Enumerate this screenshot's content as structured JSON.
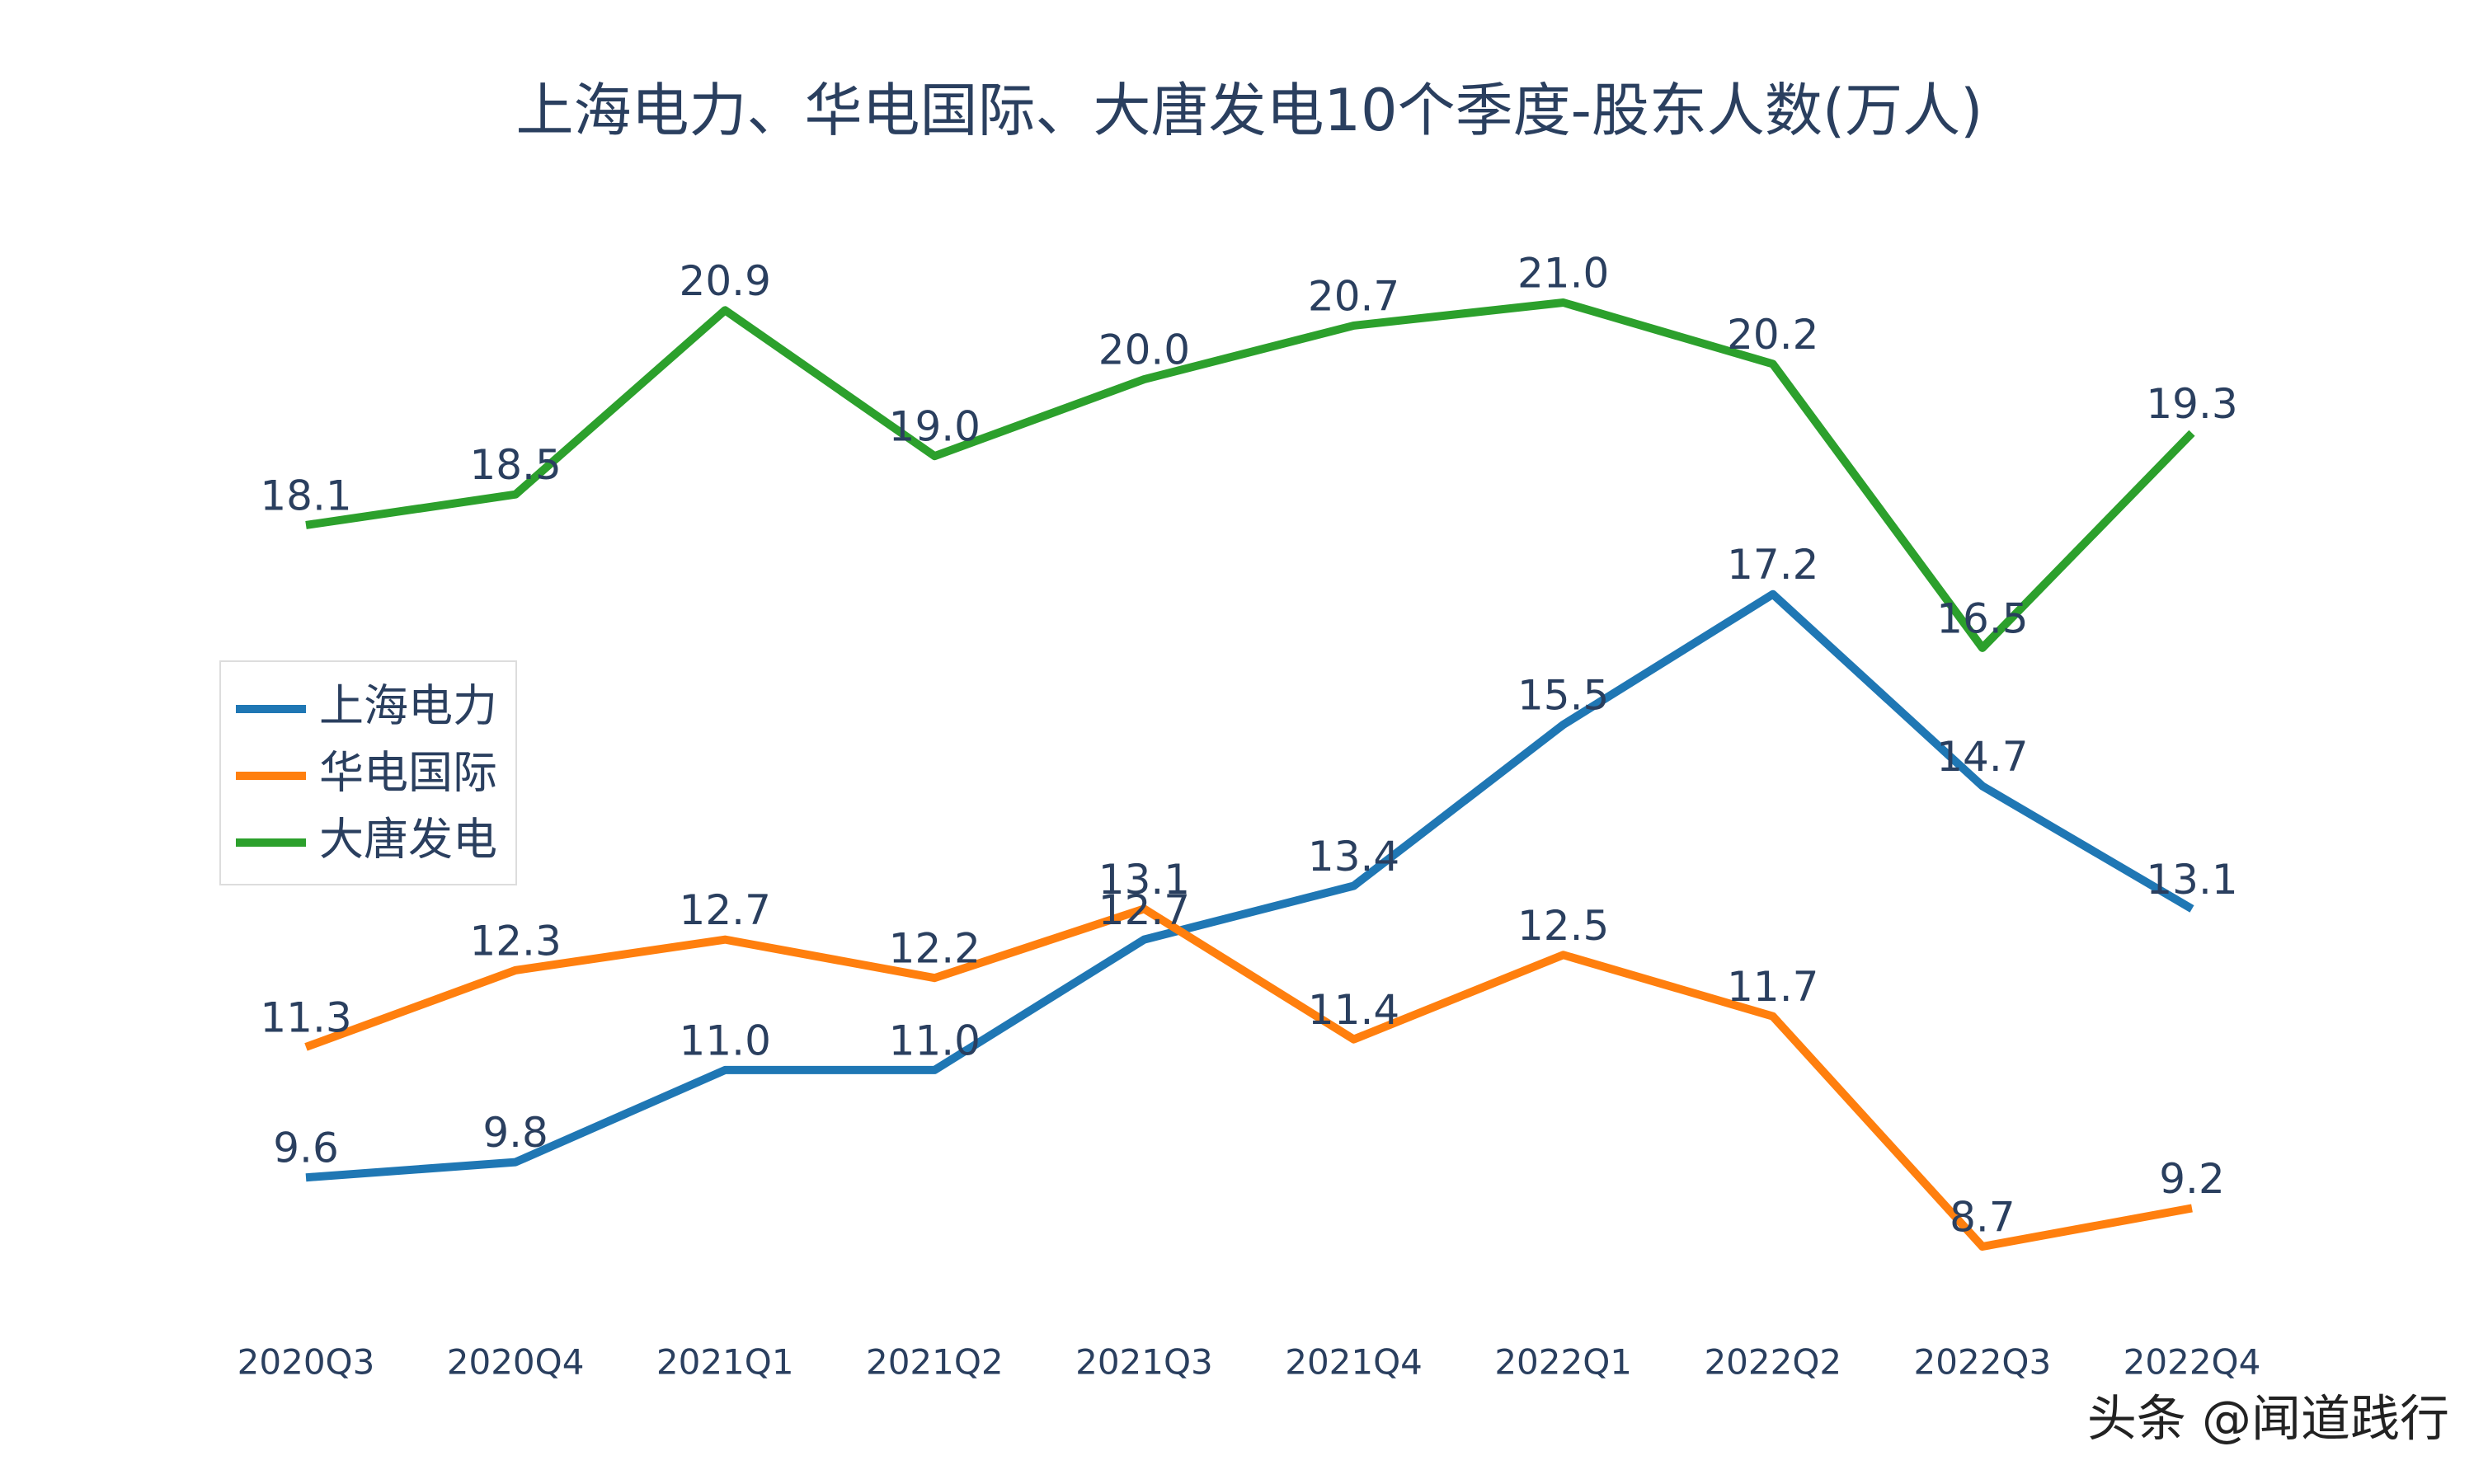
{
  "chart_data": {
    "type": "line",
    "title": "上海电力、华电国际、大唐发电10个季度-股东人数(万人)",
    "categories": [
      "2020Q3",
      "2020Q4",
      "2021Q1",
      "2021Q2",
      "2021Q3",
      "2021Q4",
      "2022Q1",
      "2022Q2",
      "2022Q3",
      "2022Q4"
    ],
    "series": [
      {
        "name": "上海电力",
        "color": "#1f77b4",
        "values": [
          9.6,
          9.8,
          11,
          11,
          12.7,
          13.4,
          15.5,
          17.2,
          14.7,
          13.1
        ],
        "value_labels": [
          "9.6",
          "9.8",
          "11.0",
          "11.0",
          "12.7",
          "13.4",
          "15.5",
          "17.2",
          "14.7",
          "13.1"
        ]
      },
      {
        "name": "华电国际",
        "color": "#ff7f0e",
        "values": [
          11.3,
          12.3,
          12.7,
          12.2,
          13.1,
          11.4,
          12.5,
          11.7,
          8.7,
          9.2
        ],
        "value_labels": [
          "11.3",
          "12.3",
          "12.7",
          "12.2",
          "13.1",
          "11.4",
          "12.5",
          "11.7",
          "8.7",
          "9.2"
        ]
      },
      {
        "name": "大唐发电",
        "color": "#2ca02c",
        "values": [
          18.1,
          18.5,
          20.9,
          19,
          20,
          20.7,
          21,
          20.2,
          16.5,
          19.3
        ],
        "value_labels": [
          "18.1",
          "18.5",
          "20.9",
          "19.0",
          "20.0",
          "20.7",
          "21.0",
          "20.2",
          "16.5",
          "19.3"
        ]
      }
    ],
    "legend": "left",
    "watermark": "头条 @闻道践行"
  }
}
